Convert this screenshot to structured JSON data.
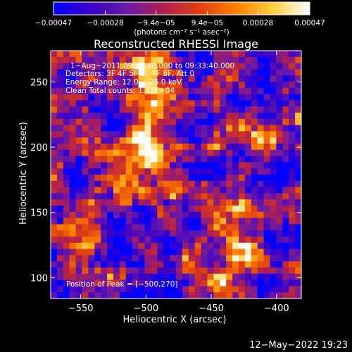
{
  "chart_data": {
    "type": "heatmap",
    "title": "Reconstructed RHESSI Image",
    "xlabel": "Heliocentric X (arcsec)",
    "ylabel": "Heliocentric Y (arcsec)",
    "xlim": [
      -573,
      -381
    ],
    "ylim": [
      84,
      274
    ],
    "x_ticks": [
      -550,
      -500,
      -450,
      -400
    ],
    "x_tick_labels": [
      "−550",
      "−500",
      "−450",
      "−400"
    ],
    "y_ticks": [
      100,
      150,
      200,
      250
    ],
    "y_tick_labels": [
      "100",
      "150",
      "200",
      "250"
    ],
    "colorbar": {
      "range": [
        -0.00047,
        0.00047
      ],
      "ticks": [
        -0.00047,
        -0.00028,
        -9.4e-05,
        9.4e-05,
        0.00028,
        0.00047
      ],
      "tick_labels": [
        "−0.00047",
        "−0.00028",
        "−9.4e−05",
        "9.4e−05",
        "0.00028",
        "0.00047"
      ],
      "unit_label": "(photons cm⁻² s⁻¹ asec⁻²)",
      "colormap": [
        "#0000ff",
        "#3a00c8",
        "#6a1aa8",
        "#b01e50",
        "#e04010",
        "#ff8000",
        "#ffd040",
        "#ffffff"
      ]
    },
    "annotations": [
      "1−Aug−2011 09:27:40.000 to 09:33:40.000",
      "Detectors: 3F 4F 5F 6F 7F 8F, Att 0",
      "Energy Range: 12.0 − 25.0 keV",
      "Clean     Total counts: 1.41E+04"
    ],
    "peak_label": "Position of Peak = [−500,270]",
    "peak": [
      -500,
      270
    ],
    "emission_sources": [
      {
        "x": -500,
        "y": 262,
        "strength": 1.0
      },
      {
        "x": -492,
        "y": 232,
        "strength": 0.9
      },
      {
        "x": -505,
        "y": 205,
        "strength": 0.85
      },
      {
        "x": -488,
        "y": 185,
        "strength": 0.8
      },
      {
        "x": -515,
        "y": 165,
        "strength": 0.7
      },
      {
        "x": -430,
        "y": 150,
        "strength": 0.85
      },
      {
        "x": -420,
        "y": 120,
        "strength": 0.8
      },
      {
        "x": -440,
        "y": 100,
        "strength": 0.75
      },
      {
        "x": -410,
        "y": 205,
        "strength": 0.55
      },
      {
        "x": -560,
        "y": 130,
        "strength": 0.55
      },
      {
        "x": -545,
        "y": 210,
        "strength": 0.45
      }
    ]
  },
  "footer_date": "12−May−2022 19:23"
}
